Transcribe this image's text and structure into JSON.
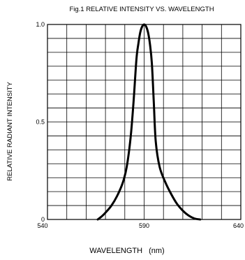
{
  "chart_data": {
    "type": "line",
    "title": "Fig.1 RELATIVE INTENSITY VS. WAVELENGTH",
    "xlabel": "WAVELENGTH",
    "xunit": "(nm)",
    "ylabel": "RELATIVE RADIANT INTENSITY",
    "xlim": [
      540,
      640
    ],
    "ylim": [
      0,
      1.0
    ],
    "x_ticks": [
      {
        "value": 540,
        "label": "540"
      },
      {
        "value": 590,
        "label": "590"
      },
      {
        "value": 640,
        "label": "640"
      }
    ],
    "y_ticks": [
      {
        "value": 0,
        "label": "0"
      },
      {
        "value": 0.5,
        "label": "0.5"
      },
      {
        "value": 1.0,
        "label": "1.0"
      }
    ],
    "grid": true,
    "grid_x_divisions": 10,
    "grid_y_divisions": 14,
    "series": [
      {
        "color": "#000000",
        "x": [
          566,
          568,
          570,
          573,
          576,
          579,
          581,
          583,
          584.5,
          586,
          587,
          588,
          589,
          590,
          591,
          592,
          593,
          594,
          595,
          596,
          598,
          601,
          604,
          607,
          610,
          613,
          616,
          619
        ],
        "y": [
          0.0,
          0.015,
          0.035,
          0.07,
          0.12,
          0.19,
          0.27,
          0.42,
          0.6,
          0.82,
          0.9,
          0.96,
          0.99,
          1.0,
          0.99,
          0.96,
          0.9,
          0.8,
          0.6,
          0.4,
          0.27,
          0.19,
          0.13,
          0.08,
          0.045,
          0.02,
          0.005,
          0.0
        ]
      }
    ]
  }
}
